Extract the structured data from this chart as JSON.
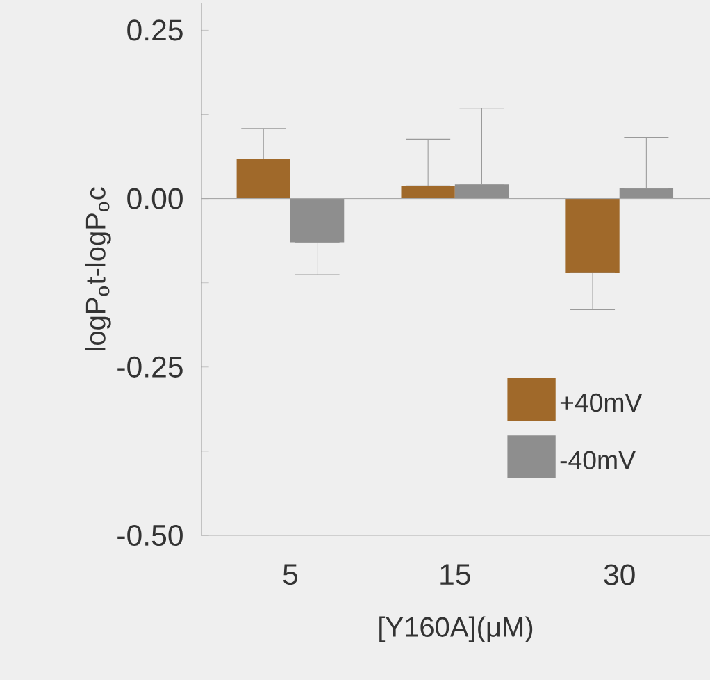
{
  "chart_data": {
    "type": "bar",
    "xlabel": "[Y160A](μM)",
    "ylabel": "logP$_{o}$t-logP$_{o}$c",
    "categories": [
      "5",
      "15",
      "30"
    ],
    "series": [
      {
        "name": "+40mV",
        "color": "#a0692a",
        "values": [
          0.059,
          0.019,
          -0.11
        ],
        "errors": [
          [
            0.059,
            0.104
          ],
          [
            0.019,
            0.088
          ],
          [
            -0.165,
            -0.11
          ]
        ]
      },
      {
        "name": "-40mV",
        "color": "#8e8e8e",
        "values": [
          -0.065,
          0.021,
          0.015
        ],
        "errors": [
          [
            -0.113,
            -0.065
          ],
          [
            0.021,
            0.134
          ],
          [
            0.015,
            0.091
          ]
        ]
      }
    ],
    "ylim": [
      -0.5,
      0.29
    ],
    "yticks": [
      {
        "value": -0.5,
        "label": "-0.50"
      },
      {
        "value": -0.375,
        "label": null
      },
      {
        "value": -0.25,
        "label": "-0.25"
      },
      {
        "value": -0.125,
        "label": null
      },
      {
        "value": 0,
        "label": "0.00"
      },
      {
        "value": 0.125,
        "label": null
      },
      {
        "value": 0.25,
        "label": "0.25"
      }
    ],
    "ref_lines": [
      {
        "axis": "y",
        "value": 0,
        "color": "#a8a8a8"
      }
    ],
    "legend": "bottom right",
    "grid": false
  }
}
